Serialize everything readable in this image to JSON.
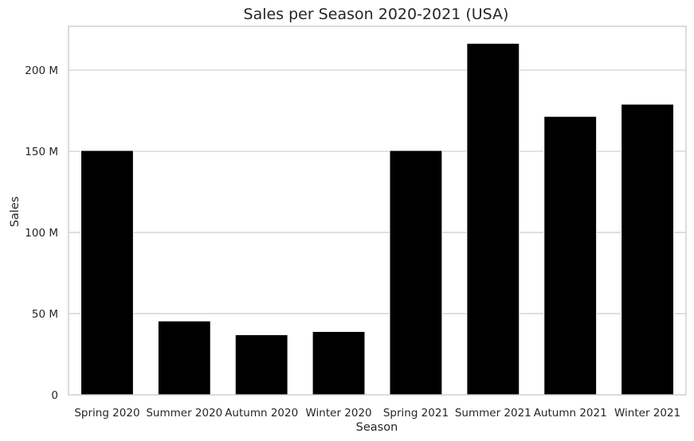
{
  "chart_data": {
    "type": "bar",
    "title": "Sales per Season 2020-2021 (USA)",
    "xlabel": "Season",
    "ylabel": "Sales",
    "categories": [
      "Spring 2020",
      "Summer 2020",
      "Autumn 2020",
      "Winter 2020",
      "Spring 2021",
      "Summer 2021",
      "Autumn 2021",
      "Winter 2021"
    ],
    "values": [
      150.5,
      45.5,
      37.0,
      39.0,
      150.5,
      216.5,
      171.5,
      179.0
    ],
    "unit_note": "values in millions",
    "ylim": [
      0,
      227
    ],
    "yticks": [
      0,
      50,
      100,
      150,
      200
    ],
    "ytick_labels": [
      "0",
      "50 M",
      "100 M",
      "150 M",
      "200 M"
    ],
    "grid": "horizontal",
    "bar_color": "#000000",
    "grid_color": "#cccccc",
    "background": "#ffffff"
  }
}
